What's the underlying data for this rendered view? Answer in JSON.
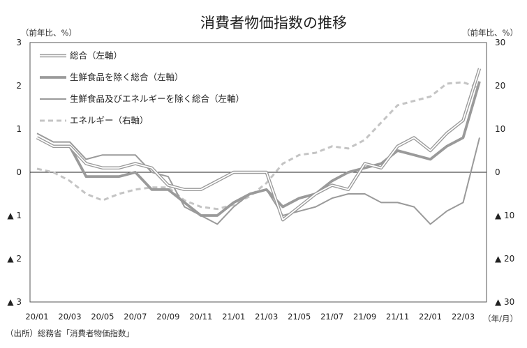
{
  "chart_data": {
    "type": "line",
    "title": "消費者物価指数の推移",
    "left_unit": "（前年比、%）",
    "right_unit": "（前年比、%）",
    "x_unit": "（年/月）",
    "source": "（出所）総務省「消費者物価指数」",
    "x": [
      "20/01",
      "20/02",
      "20/03",
      "20/04",
      "20/05",
      "20/06",
      "20/07",
      "20/08",
      "20/09",
      "20/10",
      "20/11",
      "20/12",
      "21/01",
      "21/02",
      "21/03",
      "21/04",
      "21/05",
      "21/06",
      "21/07",
      "21/08",
      "21/09",
      "21/10",
      "21/11",
      "21/12",
      "22/01",
      "22/02",
      "22/03",
      "22/04"
    ],
    "x_tick_labels": [
      "20/01",
      "20/03",
      "20/05",
      "20/07",
      "20/09",
      "20/11",
      "21/01",
      "21/03",
      "21/05",
      "21/07",
      "21/09",
      "21/11",
      "22/01",
      "22/03"
    ],
    "y_left": {
      "min": -3,
      "max": 3,
      "ticks": [
        3,
        2,
        1,
        0,
        -1,
        -2,
        -3
      ],
      "tick_labels": [
        "3",
        "2",
        "1",
        "0",
        "▲ 1",
        "▲ 2",
        "▲ 3"
      ]
    },
    "y_right": {
      "min": -30,
      "max": 30,
      "ticks": [
        30,
        20,
        10,
        0,
        -10,
        -20,
        -30
      ],
      "tick_labels": [
        "30",
        "20",
        "10",
        "0",
        "▲ 10",
        "▲ 20",
        "▲ 30"
      ]
    },
    "legend_placement": "top-left",
    "series": [
      {
        "name": "総合（左軸）",
        "axis": "left",
        "style": "double",
        "values": [
          0.8,
          0.6,
          0.6,
          0.2,
          0.1,
          0.1,
          0.2,
          0.1,
          -0.3,
          -0.4,
          -0.4,
          -0.2,
          0.0,
          0.0,
          0.0,
          -1.1,
          -0.8,
          -0.5,
          -0.3,
          -0.4,
          0.2,
          0.1,
          0.6,
          0.8,
          0.5,
          0.9,
          1.2,
          2.4
        ]
      },
      {
        "name": "生鮮食品を除く総合（左軸）",
        "axis": "left",
        "style": "thick",
        "values": [
          0.8,
          0.6,
          0.6,
          -0.1,
          -0.1,
          -0.1,
          0.0,
          -0.4,
          -0.4,
          -0.7,
          -1.0,
          -1.0,
          -0.7,
          -0.5,
          -0.4,
          -0.8,
          -0.6,
          -0.5,
          -0.2,
          0.0,
          0.1,
          0.2,
          0.5,
          0.4,
          0.3,
          0.6,
          0.8,
          2.1
        ]
      },
      {
        "name": "生鮮食品及びエネルギーを除く総合（左軸）",
        "axis": "left",
        "style": "solid",
        "values": [
          0.9,
          0.7,
          0.7,
          0.3,
          0.4,
          0.4,
          0.4,
          0.0,
          -0.1,
          -0.8,
          -1.0,
          -1.2,
          -0.8,
          -0.5,
          -0.4,
          -1.0,
          -0.9,
          -0.8,
          -0.6,
          -0.5,
          -0.5,
          -0.7,
          -0.7,
          -0.8,
          -1.2,
          -0.9,
          -0.7,
          0.8
        ]
      },
      {
        "name": "エネルギー（右軸）",
        "axis": "right",
        "style": "dashed",
        "values": [
          0.8,
          0.0,
          -2.0,
          -5.0,
          -6.5,
          -5.0,
          -4.0,
          -3.5,
          -3.5,
          -6.5,
          -8.0,
          -8.5,
          -7.5,
          -5.5,
          -2.5,
          2.0,
          4.0,
          4.5,
          6.0,
          5.5,
          7.5,
          11.5,
          15.5,
          16.5,
          17.5,
          20.5,
          20.8,
          19.5
        ]
      }
    ],
    "colors": {
      "line": "#9a9a9a",
      "dashed": "#c4c4c4",
      "axis": "#222222",
      "frame": "#555555"
    }
  }
}
